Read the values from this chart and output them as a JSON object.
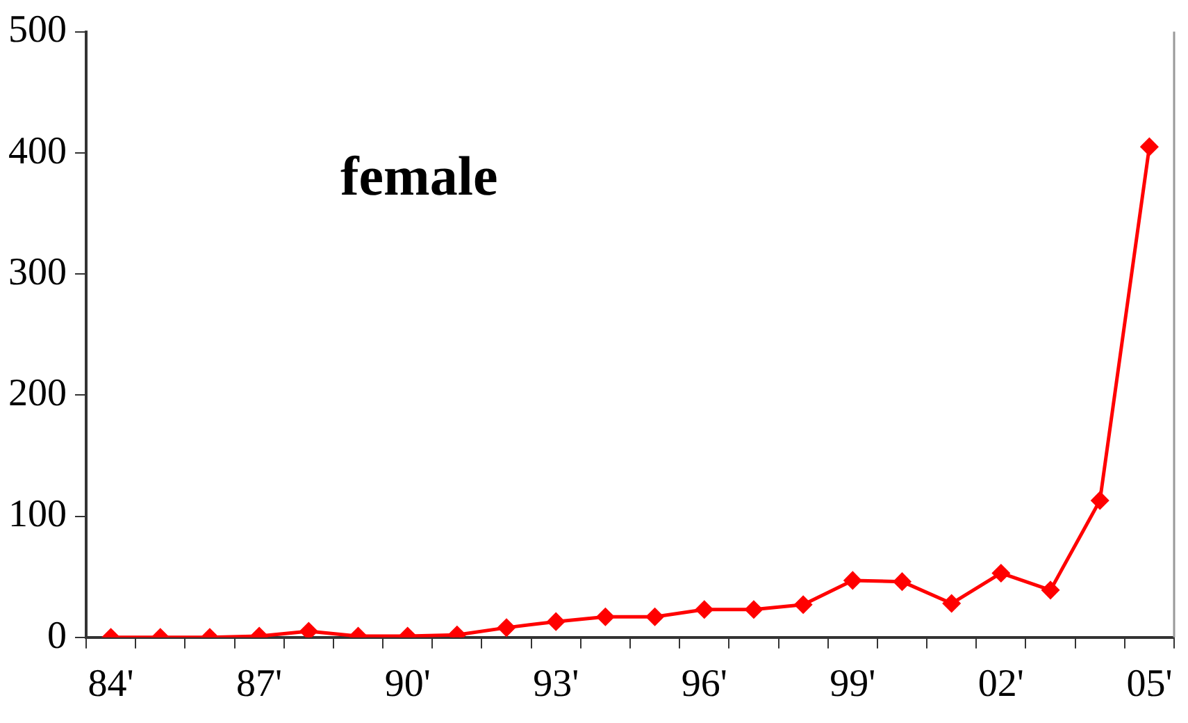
{
  "chart_data": {
    "type": "line",
    "title": "female",
    "categories": [
      "84'",
      null,
      null,
      "87'",
      null,
      null,
      "90'",
      null,
      null,
      "93'",
      null,
      null,
      "96'",
      null,
      null,
      "99'",
      null,
      null,
      "02'",
      null,
      null,
      "05'"
    ],
    "series": [
      {
        "color": "#ff0000",
        "values": [
          0,
          0,
          0,
          1,
          5,
          1,
          1,
          2,
          8,
          13,
          17,
          17,
          23,
          23,
          27,
          47,
          46,
          28,
          53,
          39,
          113,
          405
        ]
      }
    ],
    "ylim": [
      0,
      500
    ],
    "yticks": [
      0,
      100,
      200,
      300,
      400,
      500
    ],
    "grid": false,
    "legend": false,
    "marker": "diamond",
    "line_style": "solid"
  }
}
